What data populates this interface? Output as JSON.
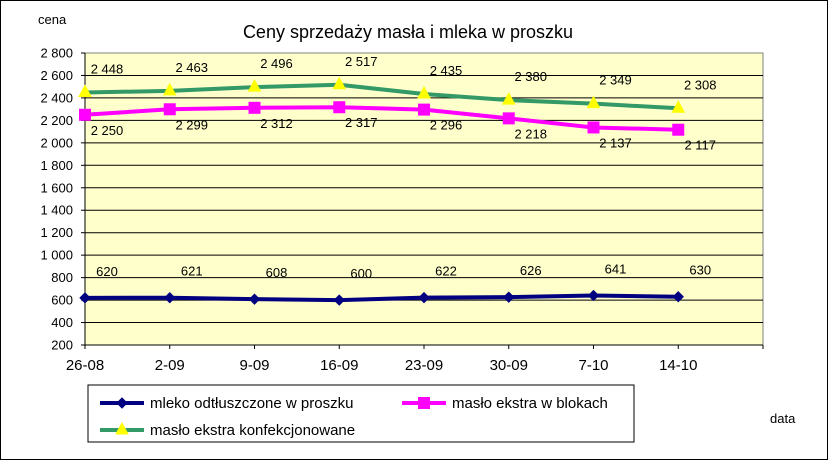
{
  "chart_data": {
    "type": "line",
    "title": "Ceny sprzedaży masła i mleka w proszku",
    "ylabel": "cena",
    "xlabel": "data",
    "ylim": [
      200,
      2800
    ],
    "ytick_step": 200,
    "yticks": [
      "200",
      "400",
      "600",
      "800",
      "1 000",
      "1 200",
      "1 400",
      "1 600",
      "1 800",
      "2 000",
      "2 200",
      "2 400",
      "2 600",
      "2 800"
    ],
    "categories": [
      "26-08",
      "2-09",
      "9-09",
      "16-09",
      "23-09",
      "30-09",
      "7-10",
      "14-10"
    ],
    "grid": "horizontal",
    "legend_position": "bottom",
    "series": [
      {
        "name": "mleko odtłuszczone w proszku",
        "color": "#000080",
        "marker": "diamond",
        "values": [
          620,
          621,
          608,
          600,
          622,
          626,
          641,
          630
        ],
        "labels": [
          "620",
          "621",
          "608",
          "600",
          "622",
          "626",
          "641",
          "630"
        ]
      },
      {
        "name": "masło ekstra w blokach",
        "color": "#ff00ff",
        "marker": "square",
        "values": [
          2250,
          2299,
          2312,
          2317,
          2296,
          2218,
          2137,
          2117
        ],
        "labels": [
          "2 250",
          "2 299",
          "2 312",
          "2 317",
          "2 296",
          "2 218",
          "2 137",
          "2 117"
        ]
      },
      {
        "name": "masło ekstra konfekcjonowane",
        "color": "#339966",
        "marker": "triangle",
        "marker_color": "#ffff00",
        "values": [
          2448,
          2463,
          2496,
          2517,
          2435,
          2380,
          2349,
          2308
        ],
        "labels": [
          "2 448",
          "2 463",
          "2 496",
          "2 517",
          "2 435",
          "2 380",
          "2 349",
          "2 308"
        ]
      }
    ]
  }
}
